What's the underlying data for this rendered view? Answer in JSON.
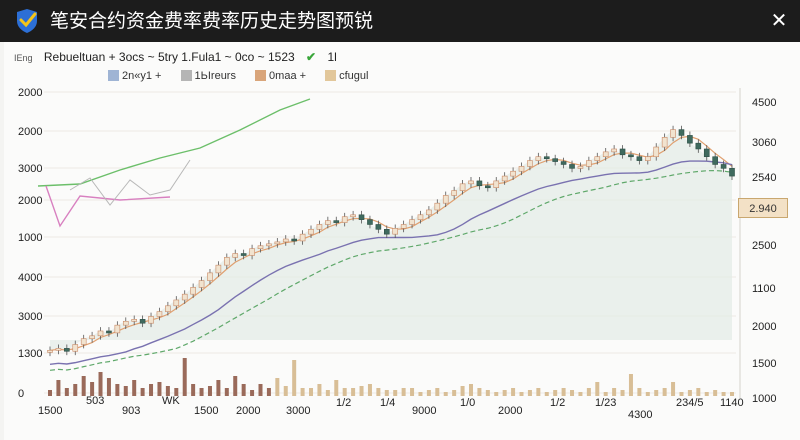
{
  "window": {
    "title": "笔安合约资金费率费率历史走势图预锐",
    "close_glyph": "✕"
  },
  "info_bar": {
    "symbol_text": "Rebueltuan + 3ocs ~ 5try 1.Fula1 ~ 0co ~ 1523",
    "left_tag": "IEng",
    "status_check": "✔",
    "status_text": "1l"
  },
  "legend": [
    {
      "label": "2n«y1 +",
      "color": "#9fb4d4"
    },
    {
      "label": "1ЬIreurs",
      "color": "#b5b5b5"
    },
    {
      "label": "0maa +",
      "color": "#d9a57a"
    },
    {
      "label": "cfugul",
      "color": "#e2c79a"
    }
  ],
  "price_tag": "2.940",
  "chart_data": {
    "type": "candlestick-with-lines",
    "left_axis_labels": [
      "2000",
      "2000",
      "3000",
      "2000",
      "1000",
      "4000",
      "3000",
      "1300",
      "0"
    ],
    "right_axis_labels": [
      "4500",
      "3060",
      "2540",
      "2.940",
      "2500",
      "1100",
      "2000",
      "1500",
      "1000"
    ],
    "x_axis_labels": [
      "1500",
      "503",
      "903",
      "WK",
      "1500",
      "2000",
      "3000",
      "1/2",
      "1/4",
      "9000",
      "1/0",
      "2000",
      "1/2",
      "1/23",
      "4300",
      "234/5",
      "1140"
    ],
    "closes": [
      1300,
      1320,
      1290,
      1360,
      1420,
      1450,
      1500,
      1480,
      1560,
      1600,
      1620,
      1580,
      1650,
      1700,
      1760,
      1820,
      1880,
      1950,
      2020,
      2100,
      2180,
      2260,
      2300,
      2280,
      2350,
      2380,
      2400,
      2420,
      2450,
      2430,
      2500,
      2550,
      2600,
      2640,
      2620,
      2680,
      2700,
      2650,
      2600,
      2550,
      2500,
      2560,
      2600,
      2650,
      2700,
      2750,
      2820,
      2900,
      2950,
      3020,
      3050,
      3000,
      2980,
      3050,
      3100,
      3150,
      3200,
      3260,
      3300,
      3280,
      3250,
      3220,
      3180,
      3200,
      3260,
      3300,
      3350,
      3380,
      3320,
      3300,
      3260,
      3300,
      3400,
      3500,
      3580,
      3520,
      3440,
      3380,
      3300,
      3220,
      3180,
      3100
    ],
    "volumes": [
      0.15,
      0.4,
      0.2,
      0.3,
      0.5,
      0.35,
      0.6,
      0.45,
      0.3,
      0.25,
      0.4,
      0.2,
      0.3,
      0.35,
      0.25,
      0.2,
      0.95,
      0.3,
      0.2,
      0.25,
      0.4,
      0.2,
      0.5,
      0.3,
      0.15,
      0.3,
      0.2,
      0.45,
      0.25,
      0.9,
      0.2,
      0.2,
      0.3,
      0.15,
      0.4,
      0.2,
      0.2,
      0.25,
      0.3,
      0.2,
      0.15,
      0.15,
      0.2,
      0.2,
      0.1,
      0.15,
      0.2,
      0.1,
      0.15,
      0.25,
      0.3,
      0.2,
      0.15,
      0.1,
      0.15,
      0.2,
      0.1,
      0.15,
      0.2,
      0.1,
      0.15,
      0.2,
      0.15,
      0.1,
      0.2,
      0.35,
      0.1,
      0.2,
      0.15,
      0.55,
      0.2,
      0.1,
      0.15,
      0.2,
      0.35,
      0.1,
      0.15,
      0.2,
      0.1,
      0.15,
      0.1,
      0.1
    ]
  }
}
